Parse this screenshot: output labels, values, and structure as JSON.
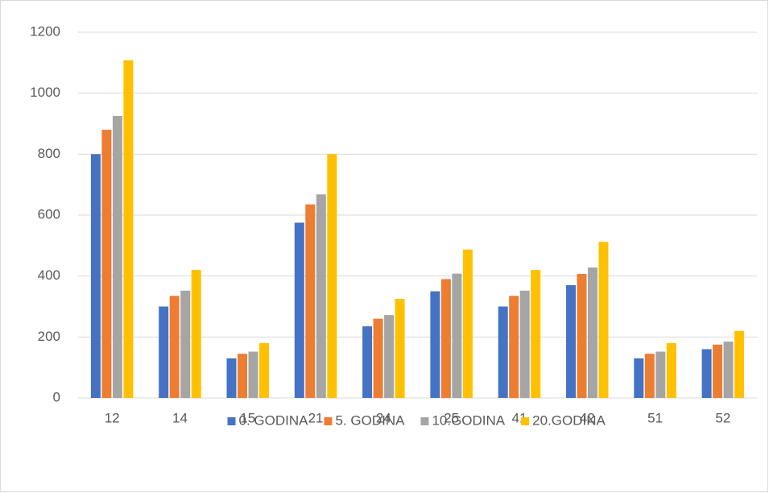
{
  "chart_data": {
    "type": "bar",
    "categories": [
      "12",
      "14",
      "15",
      "21",
      "24",
      "25",
      "41",
      "42",
      "51",
      "52"
    ],
    "series": [
      {
        "name": "0. GODINA",
        "color": "#4472c4",
        "values": [
          800,
          300,
          130,
          575,
          235,
          350,
          300,
          370,
          130,
          160
        ]
      },
      {
        "name": "5. GODINA",
        "color": "#ed7d31",
        "values": [
          880,
          335,
          145,
          635,
          260,
          390,
          335,
          407,
          145,
          175
        ]
      },
      {
        "name": "10.GODINA",
        "color": "#a5a5a5",
        "values": [
          925,
          352,
          152,
          668,
          272,
          408,
          352,
          428,
          152,
          185
        ]
      },
      {
        "name": "20.GODINA",
        "color": "#ffc000",
        "values": [
          1108,
          420,
          180,
          800,
          325,
          487,
          420,
          512,
          180,
          220
        ]
      }
    ],
    "ylim": [
      0,
      1200
    ],
    "yticks": [
      0,
      200,
      400,
      600,
      800,
      1000,
      1200
    ],
    "grid": true,
    "legend": "bottom"
  }
}
